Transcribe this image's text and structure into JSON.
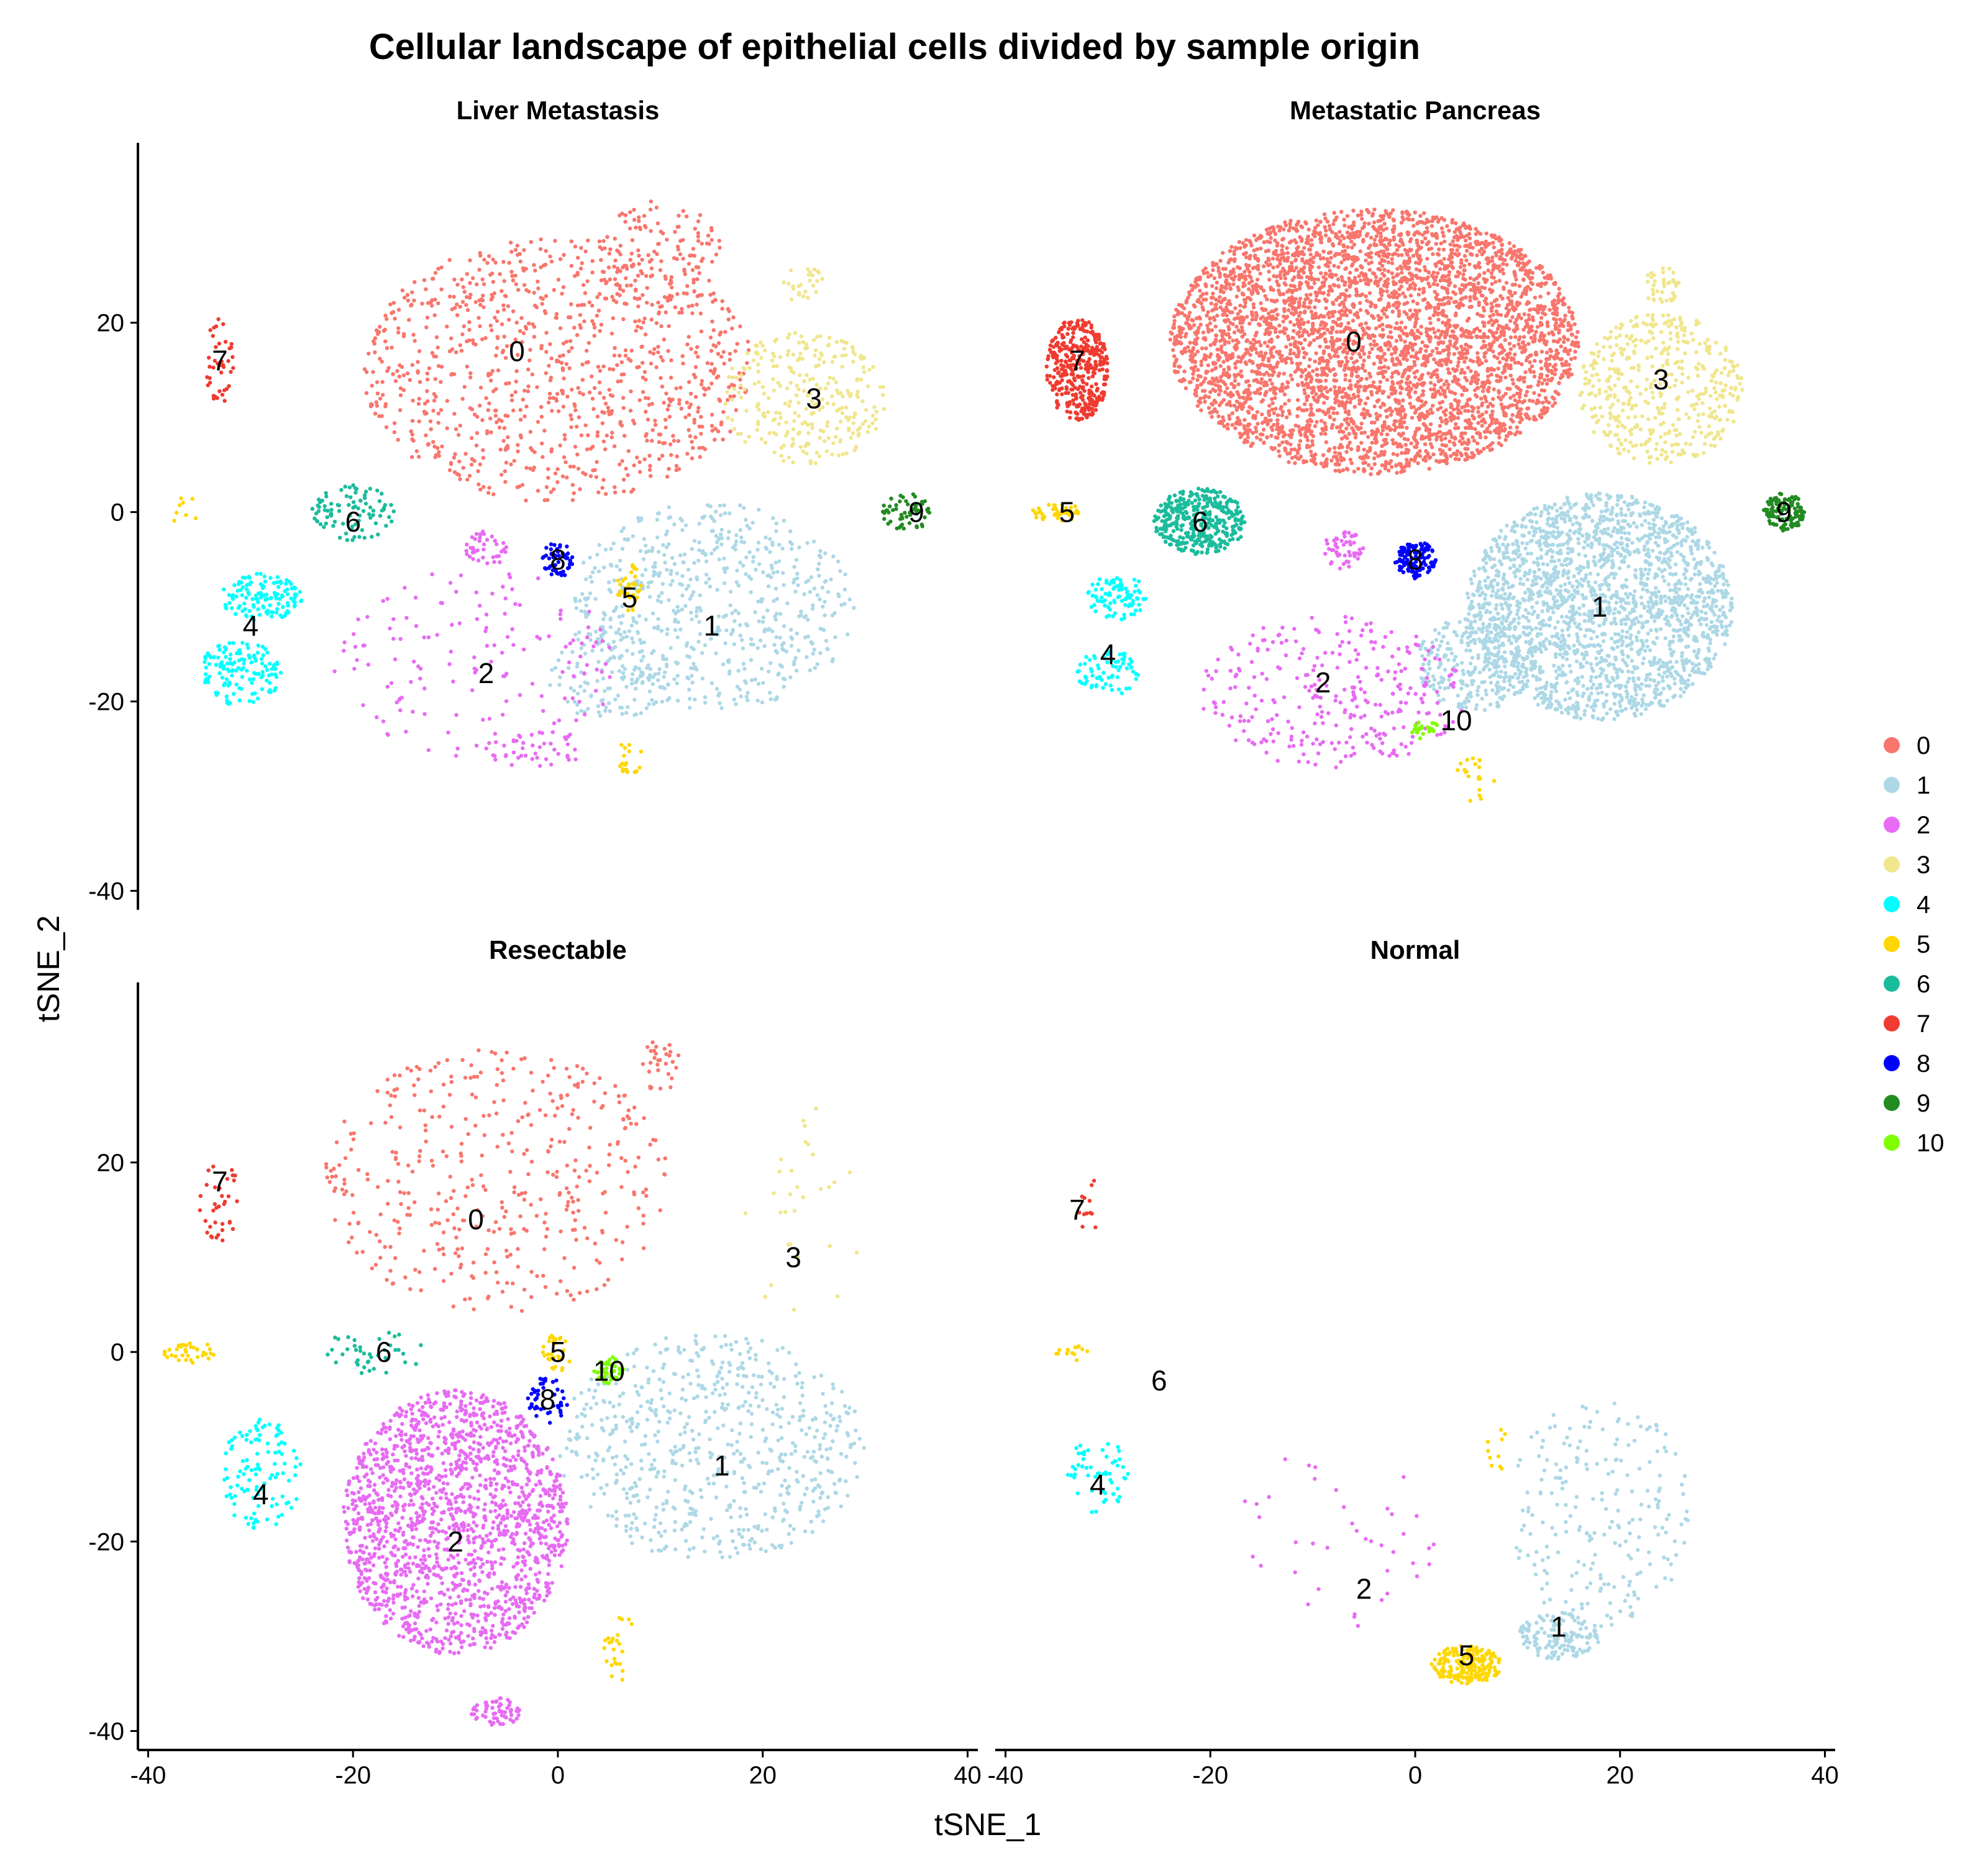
{
  "figure": {
    "title": "Cellular landscape of epithelial cells divided by sample origin"
  },
  "chart_data": {
    "type": "scatter",
    "title": "Cellular landscape of epithelial cells divided by sample origin",
    "xlabel": "tSNE_1",
    "ylabel": "tSNE_2",
    "xlim": [
      -41,
      41
    ],
    "ylim": [
      -42,
      39
    ],
    "xticks": [
      -40,
      -20,
      0,
      20,
      40
    ],
    "yticks": [
      -40,
      -20,
      0,
      20
    ],
    "grid": false,
    "legend_placement": "right",
    "clusters": [
      {
        "name": "0",
        "color": "#F8766D"
      },
      {
        "name": "1",
        "color": "#ADD8E6"
      },
      {
        "name": "2",
        "color": "#E76BF3"
      },
      {
        "name": "3",
        "color": "#F0E68C"
      },
      {
        "name": "4",
        "color": "#00FFFF"
      },
      {
        "name": "5",
        "color": "#FFD700"
      },
      {
        "name": "6",
        "color": "#1ABC9C"
      },
      {
        "name": "7",
        "color": "#F03B30"
      },
      {
        "name": "8",
        "color": "#0000FF"
      },
      {
        "name": "9",
        "color": "#228B22"
      },
      {
        "name": "10",
        "color": "#7FFF00"
      }
    ],
    "panels": [
      {
        "name": "Liver Metastasis",
        "cluster_labels": [
          {
            "text": "0",
            "x": -4,
            "y": 17
          },
          {
            "text": "3",
            "x": 25,
            "y": 12
          },
          {
            "text": "7",
            "x": -33,
            "y": 16
          },
          {
            "text": "6",
            "x": -20,
            "y": -1
          },
          {
            "text": "8",
            "x": 0,
            "y": -5
          },
          {
            "text": "9",
            "x": 35,
            "y": 0
          },
          {
            "text": "5",
            "x": 7,
            "y": -9
          },
          {
            "text": "4",
            "x": -30,
            "y": -12
          },
          {
            "text": "1",
            "x": 15,
            "y": -12
          },
          {
            "text": "2",
            "x": -7,
            "y": -17
          }
        ],
        "clouds": [
          {
            "c": 0,
            "n": 950,
            "shape": "ellipse",
            "cx": 0,
            "cy": 15,
            "rx": 19,
            "ry": 14
          },
          {
            "c": 0,
            "n": 120,
            "shape": "ellipse",
            "cx": 10,
            "cy": 27,
            "rx": 6,
            "ry": 6
          },
          {
            "c": 3,
            "n": 280,
            "shape": "ellipse",
            "cx": 24,
            "cy": 12,
            "rx": 8,
            "ry": 7
          },
          {
            "c": 3,
            "n": 25,
            "shape": "ellipse",
            "cx": 24,
            "cy": 24,
            "rx": 2,
            "ry": 2
          },
          {
            "c": 1,
            "n": 600,
            "shape": "ellipse",
            "cx": 15,
            "cy": -10,
            "rx": 14,
            "ry": 11
          },
          {
            "c": 1,
            "n": 120,
            "shape": "ellipse",
            "cx": 5,
            "cy": -17,
            "rx": 6,
            "ry": 5
          },
          {
            "c": 2,
            "n": 150,
            "shape": "ellipse",
            "cx": -8,
            "cy": -16,
            "rx": 14,
            "ry": 10
          },
          {
            "c": 2,
            "n": 40,
            "shape": "ellipse",
            "cx": -7,
            "cy": -4,
            "rx": 2,
            "ry": 2
          },
          {
            "c": 2,
            "n": 40,
            "shape": "ellipse",
            "cx": -2,
            "cy": -25,
            "rx": 5,
            "ry": 2
          },
          {
            "c": 4,
            "n": 130,
            "shape": "ellipse",
            "cx": -29,
            "cy": -9,
            "rx": 4,
            "ry": 2.5
          },
          {
            "c": 4,
            "n": 140,
            "shape": "ellipse",
            "cx": -31,
            "cy": -17,
            "rx": 4,
            "ry": 3.5
          },
          {
            "c": 6,
            "n": 90,
            "shape": "ellipse",
            "cx": -20,
            "cy": 0,
            "rx": 4,
            "ry": 3
          },
          {
            "c": 7,
            "n": 40,
            "shape": "ellipse",
            "cx": -33,
            "cy": 16,
            "rx": 1.5,
            "ry": 4.5
          },
          {
            "c": 8,
            "n": 50,
            "shape": "ellipse",
            "cx": 0,
            "cy": -5,
            "rx": 1.5,
            "ry": 2
          },
          {
            "c": 9,
            "n": 60,
            "shape": "ellipse",
            "cx": 34,
            "cy": 0,
            "rx": 2.5,
            "ry": 2
          },
          {
            "c": 5,
            "n": 35,
            "shape": "ellipse",
            "cx": 7,
            "cy": -8,
            "rx": 1.2,
            "ry": 2.5
          },
          {
            "c": 5,
            "n": 20,
            "shape": "ellipse",
            "cx": 7,
            "cy": -26,
            "rx": 1.2,
            "ry": 2
          },
          {
            "c": 5,
            "n": 8,
            "shape": "ellipse",
            "cx": -36,
            "cy": 0,
            "rx": 2,
            "ry": 2
          }
        ]
      },
      {
        "name": "Metastatic Pancreas",
        "cluster_labels": [
          {
            "text": "0",
            "x": -6,
            "y": 18
          },
          {
            "text": "3",
            "x": 24,
            "y": 14
          },
          {
            "text": "7",
            "x": -33,
            "y": 16
          },
          {
            "text": "5",
            "x": -34,
            "y": 0
          },
          {
            "text": "6",
            "x": -21,
            "y": -1
          },
          {
            "text": "8",
            "x": 0,
            "y": -5
          },
          {
            "text": "9",
            "x": 36,
            "y": 0
          },
          {
            "text": "1",
            "x": 18,
            "y": -10
          },
          {
            "text": "4",
            "x": -30,
            "y": -15
          },
          {
            "text": "2",
            "x": -9,
            "y": -18
          },
          {
            "text": "10",
            "x": 4,
            "y": -22
          }
        ],
        "clouds": [
          {
            "c": 0,
            "n": 4200,
            "shape": "ellipse",
            "cx": -4,
            "cy": 18,
            "rx": 20,
            "ry": 14
          },
          {
            "c": 3,
            "n": 450,
            "shape": "ellipse",
            "cx": 24,
            "cy": 13,
            "rx": 8,
            "ry": 8
          },
          {
            "c": 3,
            "n": 40,
            "shape": "ellipse",
            "cx": 24,
            "cy": 24,
            "rx": 2,
            "ry": 2
          },
          {
            "c": 1,
            "n": 2100,
            "shape": "ellipse",
            "cx": 18,
            "cy": -10,
            "rx": 13,
            "ry": 12
          },
          {
            "c": 1,
            "n": 250,
            "shape": "ellipse",
            "cx": 6,
            "cy": -16,
            "rx": 6,
            "ry": 5
          },
          {
            "c": 2,
            "n": 300,
            "shape": "ellipse",
            "cx": -8,
            "cy": -19,
            "rx": 13,
            "ry": 8
          },
          {
            "c": 2,
            "n": 50,
            "shape": "ellipse",
            "cx": -7,
            "cy": -4,
            "rx": 2,
            "ry": 2
          },
          {
            "c": 7,
            "n": 380,
            "shape": "ellipse",
            "cx": -33,
            "cy": 15,
            "rx": 3,
            "ry": 5.5
          },
          {
            "c": 6,
            "n": 380,
            "shape": "ellipse",
            "cx": -21,
            "cy": -1,
            "rx": 4.5,
            "ry": 3.5
          },
          {
            "c": 8,
            "n": 120,
            "shape": "ellipse",
            "cx": 0,
            "cy": -5,
            "rx": 2,
            "ry": 2
          },
          {
            "c": 9,
            "n": 120,
            "shape": "ellipse",
            "cx": 36,
            "cy": 0,
            "rx": 2,
            "ry": 2
          },
          {
            "c": 4,
            "n": 90,
            "shape": "ellipse",
            "cx": -29,
            "cy": -9,
            "rx": 3,
            "ry": 2.5
          },
          {
            "c": 4,
            "n": 70,
            "shape": "ellipse",
            "cx": -30,
            "cy": -17,
            "rx": 3,
            "ry": 2.5
          },
          {
            "c": 5,
            "n": 45,
            "shape": "ellipse",
            "cx": -35,
            "cy": 0,
            "rx": 2.5,
            "ry": 1
          },
          {
            "c": 5,
            "n": 20,
            "shape": "ellipse",
            "cx": 6,
            "cy": -28,
            "rx": 2,
            "ry": 3
          },
          {
            "c": 10,
            "n": 25,
            "shape": "ellipse",
            "cx": 1,
            "cy": -23,
            "rx": 1.5,
            "ry": 1
          }
        ]
      },
      {
        "name": "Resectable",
        "cluster_labels": [
          {
            "text": "7",
            "x": -33,
            "y": 18
          },
          {
            "text": "0",
            "x": -8,
            "y": 14
          },
          {
            "text": "3",
            "x": 23,
            "y": 10
          },
          {
            "text": "6",
            "x": -17,
            "y": 0
          },
          {
            "text": "5",
            "x": 0,
            "y": 0
          },
          {
            "text": "10",
            "x": 5,
            "y": -2
          },
          {
            "text": "8",
            "x": -1,
            "y": -5
          },
          {
            "text": "1",
            "x": 16,
            "y": -12
          },
          {
            "text": "4",
            "x": -29,
            "y": -15
          },
          {
            "text": "2",
            "x": -10,
            "y": -20
          }
        ],
        "clouds": [
          {
            "c": 0,
            "n": 420,
            "shape": "ellipse",
            "cx": -6,
            "cy": 18,
            "rx": 17,
            "ry": 14
          },
          {
            "c": 0,
            "n": 30,
            "shape": "ellipse",
            "cx": 10,
            "cy": 30,
            "rx": 2,
            "ry": 3
          },
          {
            "c": 3,
            "n": 30,
            "shape": "ellipse",
            "cx": 24,
            "cy": 14,
            "rx": 6,
            "ry": 12
          },
          {
            "c": 1,
            "n": 650,
            "shape": "ellipse",
            "cx": 15,
            "cy": -10,
            "rx": 15,
            "ry": 12
          },
          {
            "c": 2,
            "n": 1650,
            "shape": "ellipse",
            "cx": -10,
            "cy": -18,
            "rx": 11,
            "ry": 14
          },
          {
            "c": 2,
            "n": 60,
            "shape": "ellipse",
            "cx": -6,
            "cy": -38,
            "rx": 2.5,
            "ry": 1.5
          },
          {
            "c": 4,
            "n": 110,
            "shape": "ellipse",
            "cx": -29,
            "cy": -13,
            "rx": 4,
            "ry": 6
          },
          {
            "c": 7,
            "n": 35,
            "shape": "ellipse",
            "cx": -33,
            "cy": 16,
            "rx": 2,
            "ry": 4.5
          },
          {
            "c": 6,
            "n": 40,
            "shape": "ellipse",
            "cx": -18,
            "cy": 0,
            "rx": 5,
            "ry": 2.5
          },
          {
            "c": 5,
            "n": 30,
            "shape": "ellipse",
            "cx": 0,
            "cy": 0,
            "rx": 1.5,
            "ry": 2
          },
          {
            "c": 5,
            "n": 35,
            "shape": "ellipse",
            "cx": -36,
            "cy": 0,
            "rx": 2.5,
            "ry": 1.2
          },
          {
            "c": 5,
            "n": 25,
            "shape": "ellipse",
            "cx": 6,
            "cy": -31,
            "rx": 1.5,
            "ry": 4
          },
          {
            "c": 10,
            "n": 40,
            "shape": "ellipse",
            "cx": 5,
            "cy": -2,
            "rx": 1.5,
            "ry": 1.5
          },
          {
            "c": 8,
            "n": 45,
            "shape": "ellipse",
            "cx": -1,
            "cy": -5,
            "rx": 2,
            "ry": 2.5
          }
        ]
      },
      {
        "name": "Normal",
        "cluster_labels": [
          {
            "text": "7",
            "x": -33,
            "y": 15
          },
          {
            "text": "6",
            "x": -25,
            "y": -3
          },
          {
            "text": "4",
            "x": -31,
            "y": -14
          },
          {
            "text": "2",
            "x": -5,
            "y": -25
          },
          {
            "text": "1",
            "x": 14,
            "y": -29
          },
          {
            "text": "5",
            "x": 5,
            "y": -32
          }
        ],
        "clouds": [
          {
            "c": 7,
            "n": 12,
            "shape": "ellipse",
            "cx": -32,
            "cy": 16,
            "rx": 1.2,
            "ry": 4
          },
          {
            "c": 5,
            "n": 14,
            "shape": "ellipse",
            "cx": -34,
            "cy": 0,
            "rx": 2,
            "ry": 1
          },
          {
            "c": 4,
            "n": 55,
            "shape": "ellipse",
            "cx": -31,
            "cy": -13,
            "rx": 3,
            "ry": 4
          },
          {
            "c": 2,
            "n": 40,
            "shape": "ellipse",
            "cx": -8,
            "cy": -20,
            "rx": 10,
            "ry": 10
          },
          {
            "c": 1,
            "n": 220,
            "shape": "ellipse",
            "cx": 18,
            "cy": -17,
            "rx": 9,
            "ry": 12
          },
          {
            "c": 1,
            "n": 140,
            "shape": "ellipse",
            "cx": 14,
            "cy": -30,
            "rx": 4,
            "ry": 2.5
          },
          {
            "c": 5,
            "n": 200,
            "shape": "ellipse",
            "cx": 5,
            "cy": -33,
            "rx": 3.5,
            "ry": 2
          },
          {
            "c": 5,
            "n": 10,
            "shape": "ellipse",
            "cx": 8,
            "cy": -10,
            "rx": 1,
            "ry": 3
          }
        ]
      }
    ]
  }
}
